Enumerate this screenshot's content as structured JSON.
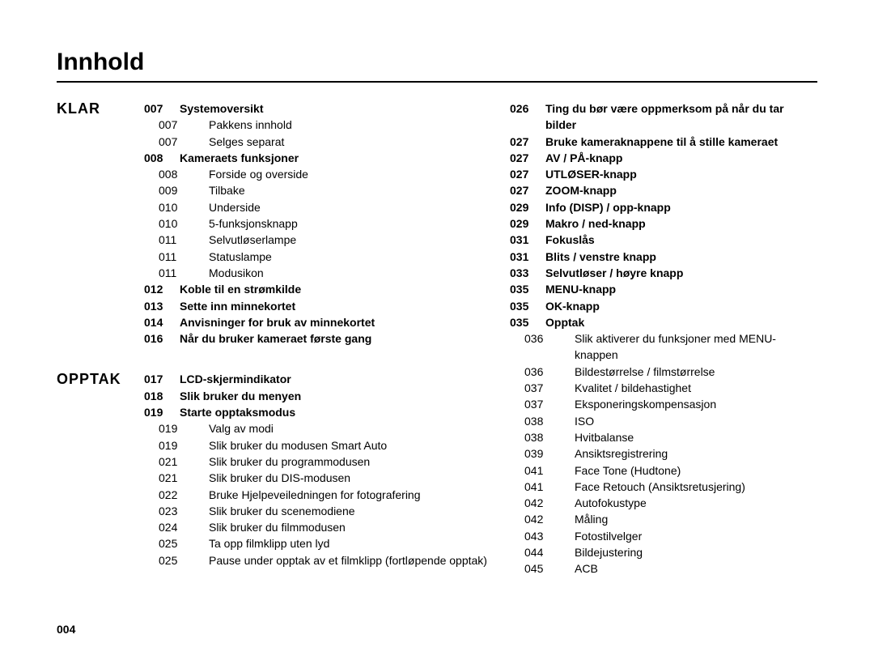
{
  "title": "Innhold",
  "page_number": "004",
  "sections": {
    "klar": {
      "label": "KLAR",
      "entries": [
        {
          "n": "007",
          "t": "Systemoversikt",
          "b": true
        },
        {
          "n": "007",
          "t": "Pakkens innhold",
          "b": false,
          "i": true
        },
        {
          "n": "007",
          "t": "Selges separat",
          "b": false,
          "i": true
        },
        {
          "n": "008",
          "t": "Kameraets funksjoner",
          "b": true
        },
        {
          "n": "008",
          "t": "Forside og overside",
          "b": false,
          "i": true
        },
        {
          "n": "009",
          "t": "Tilbake",
          "b": false,
          "i": true
        },
        {
          "n": "010",
          "t": "Underside",
          "b": false,
          "i": true
        },
        {
          "n": "010",
          "t": "5-funksjonsknapp",
          "b": false,
          "i": true
        },
        {
          "n": "011",
          "t": "Selvutløserlampe",
          "b": false,
          "i": true
        },
        {
          "n": "011",
          "t": "Statuslampe",
          "b": false,
          "i": true
        },
        {
          "n": "011",
          "t": "Modusikon",
          "b": false,
          "i": true
        },
        {
          "n": "012",
          "t": "Koble til en strømkilde",
          "b": true
        },
        {
          "n": "013",
          "t": "Sette inn minnekortet",
          "b": true
        },
        {
          "n": "014",
          "t": "Anvisninger for bruk av minnekortet",
          "b": true
        },
        {
          "n": "016",
          "t": "Når du bruker kameraet første gang",
          "b": true
        }
      ]
    },
    "opptak": {
      "label": "OPPTAK",
      "entries": [
        {
          "n": "017",
          "t": "LCD-skjermindikator",
          "b": true
        },
        {
          "n": "018",
          "t": "Slik bruker du menyen",
          "b": true
        },
        {
          "n": "019",
          "t": "Starte opptaksmodus",
          "b": true
        },
        {
          "n": "019",
          "t": "Valg av modi",
          "b": false,
          "i": true
        },
        {
          "n": "019",
          "t": "Slik bruker du modusen Smart Auto",
          "b": false,
          "i": true
        },
        {
          "n": "021",
          "t": "Slik bruker du programmodusen",
          "b": false,
          "i": true
        },
        {
          "n": "021",
          "t": "Slik bruker du DIS-modusen",
          "b": false,
          "i": true
        },
        {
          "n": "022",
          "t": "Bruke Hjelpeveiledningen for fotografering",
          "b": false,
          "i": true
        },
        {
          "n": "023",
          "t": "Slik bruker du scenemodiene",
          "b": false,
          "i": true
        },
        {
          "n": "024",
          "t": "Slik bruker du filmmodusen",
          "b": false,
          "i": true
        },
        {
          "n": "025",
          "t": "Ta opp filmklipp uten lyd",
          "b": false,
          "i": true
        },
        {
          "n": "025",
          "t": "Pause under opptak av et filmklipp (fortløpende opptak)",
          "b": false,
          "i": true
        }
      ]
    },
    "right": {
      "entries": [
        {
          "n": "026",
          "t": "Ting du bør være oppmerksom på når du tar bilder",
          "b": true
        },
        {
          "n": "027",
          "t": "Bruke kameraknappene til å stille kameraet",
          "b": true
        },
        {
          "n": "027",
          "t": "AV / PÅ-knapp",
          "b": true
        },
        {
          "n": "027",
          "t": "UTLØSER-knapp",
          "b": true
        },
        {
          "n": "027",
          "t": "ZOOM-knapp",
          "b": true
        },
        {
          "n": "029",
          "t": "Info (DISP) / opp-knapp",
          "b": true
        },
        {
          "n": "029",
          "t": "Makro / ned-knapp",
          "b": true
        },
        {
          "n": "031",
          "t": "Fokuslås",
          "b": true
        },
        {
          "n": "031",
          "t": "Blits / venstre knapp",
          "b": true
        },
        {
          "n": "033",
          "t": "Selvutløser / høyre knapp",
          "b": true
        },
        {
          "n": "035",
          "t": "MENU-knapp",
          "b": true
        },
        {
          "n": "035",
          "t": "OK-knapp",
          "b": true
        },
        {
          "n": "035",
          "t": "Opptak",
          "b": true
        },
        {
          "n": "036",
          "t": "Slik aktiverer du funksjoner med MENU-knappen",
          "b": false,
          "i": true
        },
        {
          "n": "036",
          "t": "Bildestørrelse / filmstørrelse",
          "b": false,
          "i": true
        },
        {
          "n": "037",
          "t": "Kvalitet / bildehastighet",
          "b": false,
          "i": true
        },
        {
          "n": "037",
          "t": "Eksponeringskompensasjon",
          "b": false,
          "i": true
        },
        {
          "n": "038",
          "t": "ISO",
          "b": false,
          "i": true
        },
        {
          "n": "038",
          "t": "Hvitbalanse",
          "b": false,
          "i": true
        },
        {
          "n": "039",
          "t": "Ansiktsregistrering",
          "b": false,
          "i": true
        },
        {
          "n": "041",
          "t": "Face Tone (Hudtone)",
          "b": false,
          "i": true
        },
        {
          "n": "041",
          "t": "Face Retouch (Ansiktsretusjering)",
          "b": false,
          "i": true
        },
        {
          "n": "042",
          "t": "Autofokustype",
          "b": false,
          "i": true
        },
        {
          "n": "042",
          "t": "Måling",
          "b": false,
          "i": true
        },
        {
          "n": "043",
          "t": "Fotostilvelger",
          "b": false,
          "i": true
        },
        {
          "n": "044",
          "t": "Bildejustering",
          "b": false,
          "i": true
        },
        {
          "n": "045",
          "t": "ACB",
          "b": false,
          "i": true
        }
      ]
    }
  }
}
